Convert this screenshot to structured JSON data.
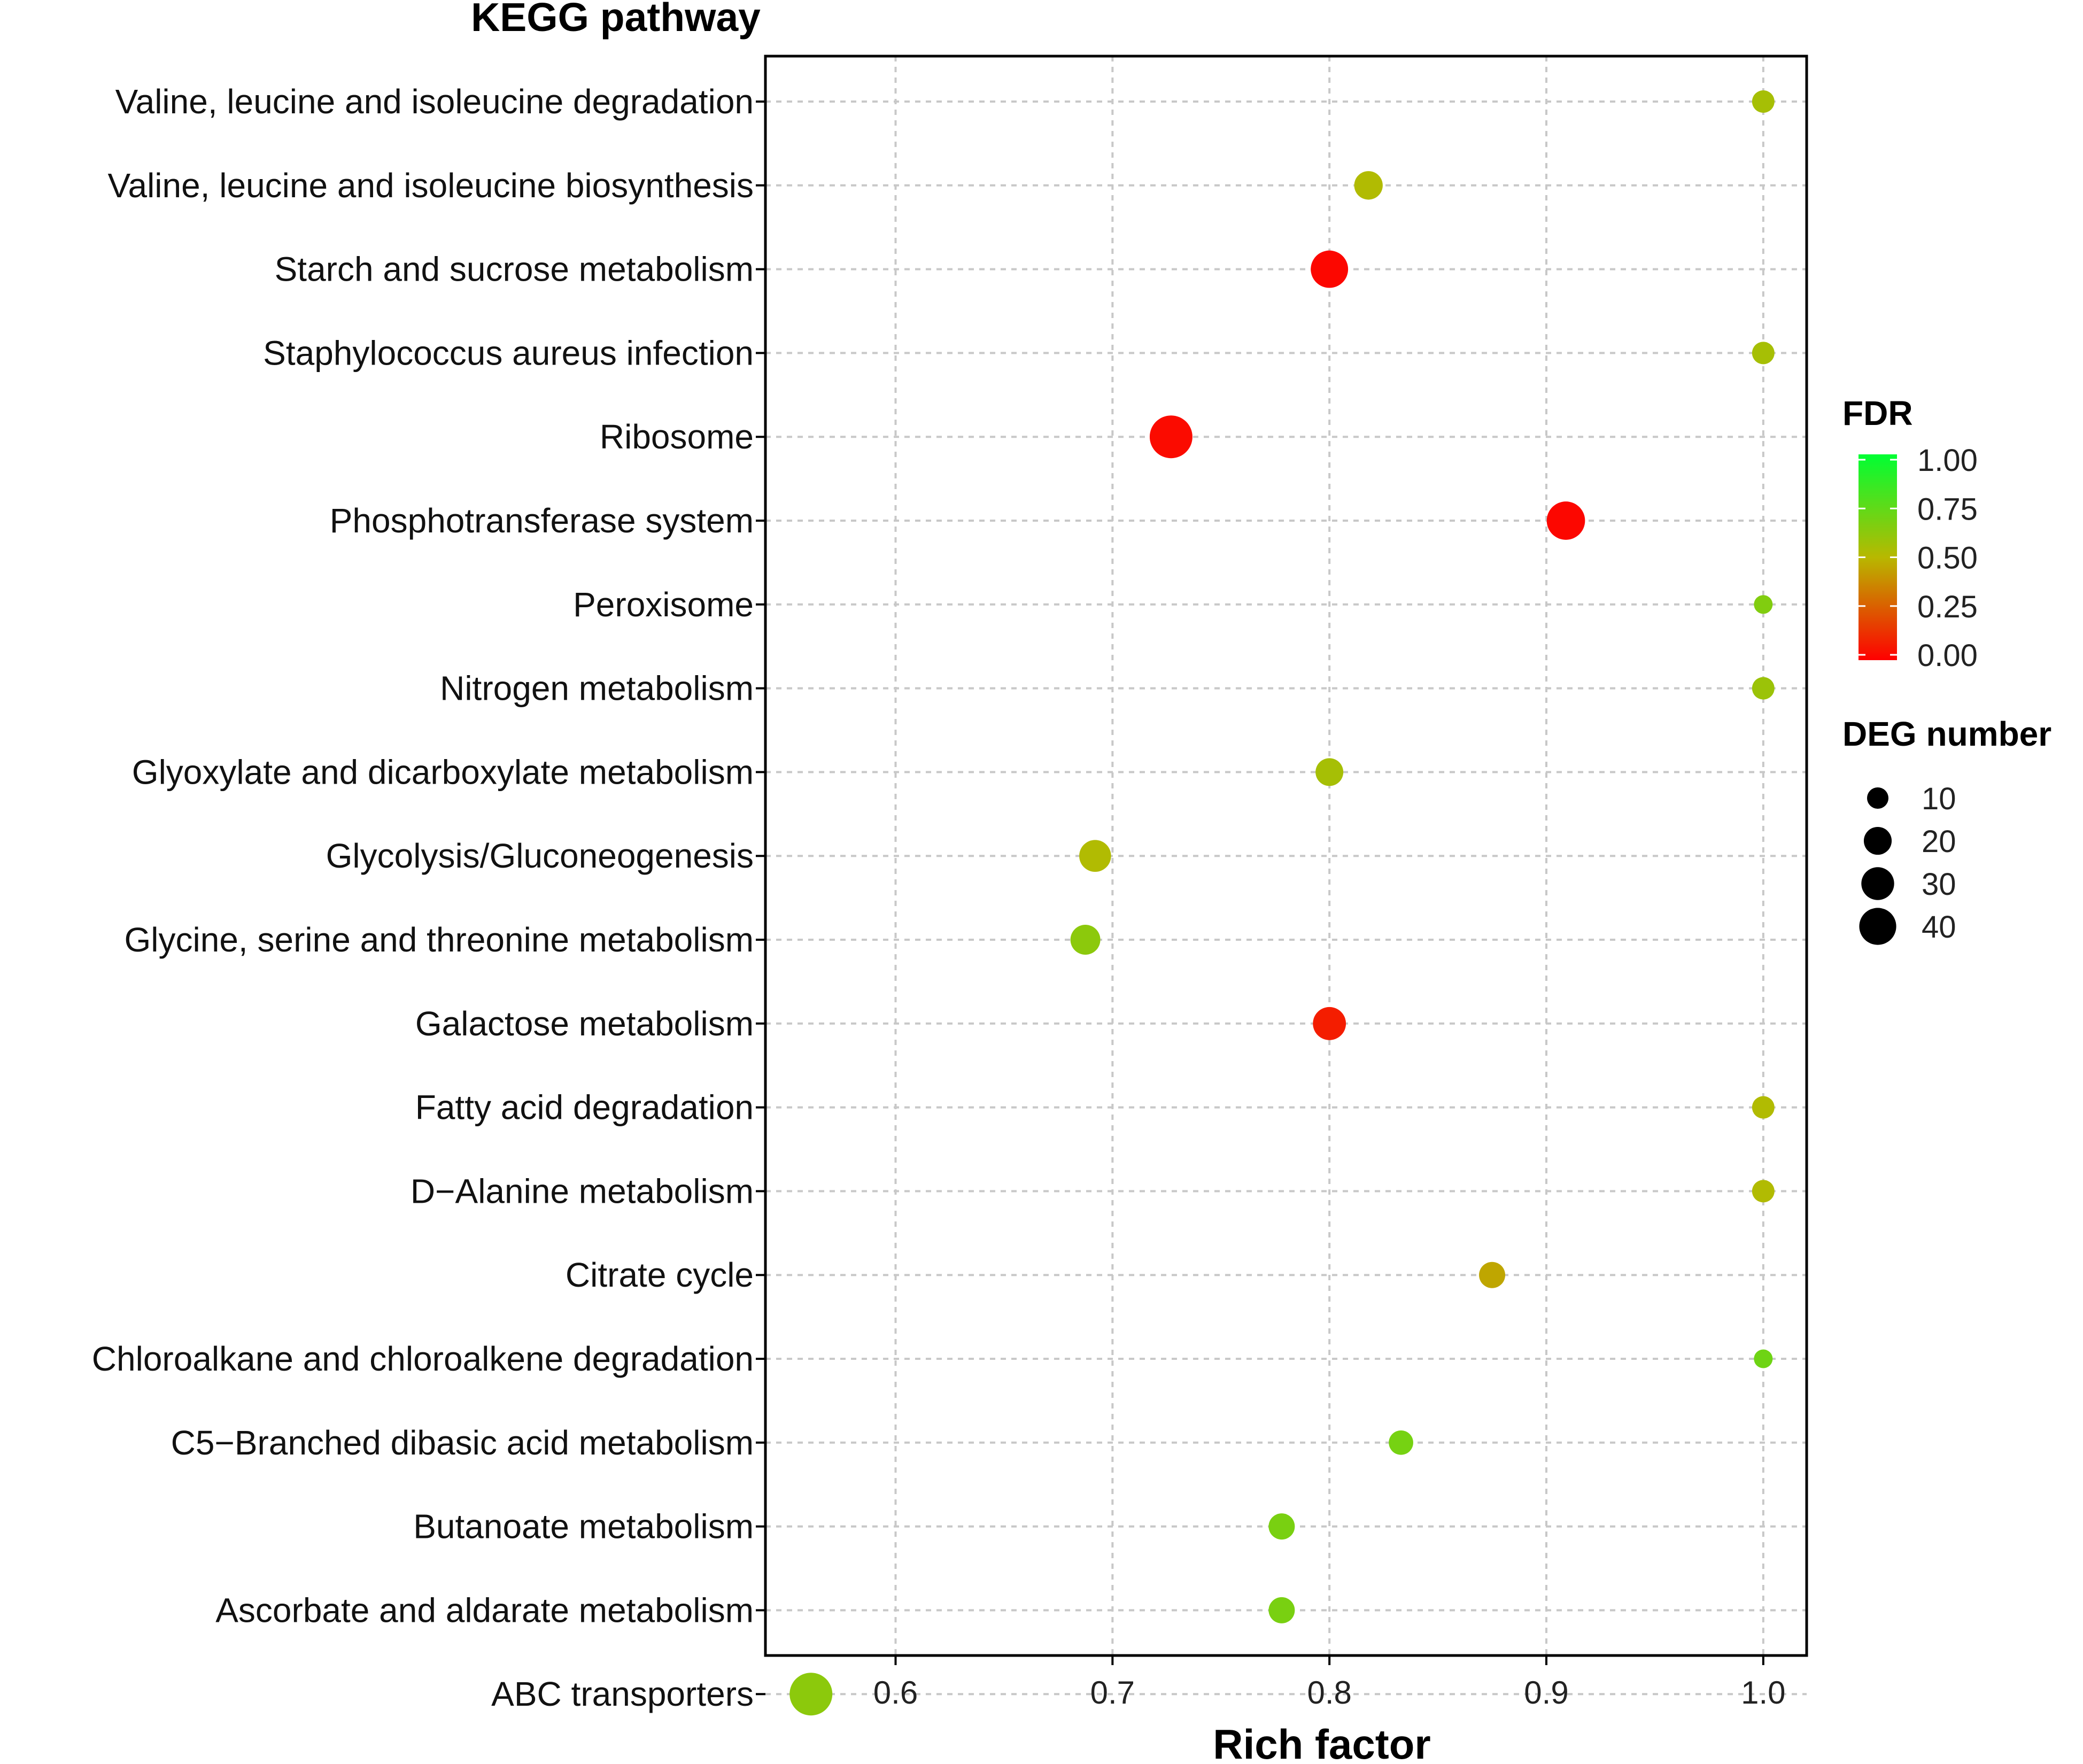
{
  "chart_data": {
    "type": "scatter",
    "title": "KEGG pathway",
    "xlabel": "Rich factor",
    "ylabel": "",
    "xlim": [
      0.54,
      1.02
    ],
    "xticks": [
      0.6,
      0.7,
      0.8,
      0.9,
      1.0
    ],
    "xtick_labels": [
      "0.6",
      "0.7",
      "0.8",
      "0.9",
      "1.0"
    ],
    "grid": true,
    "points": [
      {
        "pathway": "Valine, leucine and isoleucine degradation",
        "rich_factor": 1.0,
        "fdr": 0.55,
        "deg_number": 6
      },
      {
        "pathway": "Valine, leucine and isoleucine biosynthesis",
        "rich_factor": 0.818,
        "fdr": 0.52,
        "deg_number": 13
      },
      {
        "pathway": "Starch and sucrose metabolism",
        "rich_factor": 0.8,
        "fdr": 0.02,
        "deg_number": 28
      },
      {
        "pathway": "Staphylococcus aureus infection",
        "rich_factor": 1.0,
        "fdr": 0.55,
        "deg_number": 6
      },
      {
        "pathway": "Ribosome",
        "rich_factor": 0.727,
        "fdr": 0.03,
        "deg_number": 40
      },
      {
        "pathway": "Phosphotransferase system",
        "rich_factor": 0.909,
        "fdr": 0.02,
        "deg_number": 30
      },
      {
        "pathway": "Peroxisome",
        "rich_factor": 1.0,
        "fdr": 0.65,
        "deg_number": 3
      },
      {
        "pathway": "Nitrogen metabolism",
        "rich_factor": 1.0,
        "fdr": 0.58,
        "deg_number": 6
      },
      {
        "pathway": "Glyoxylate and dicarboxylate metabolism",
        "rich_factor": 0.8,
        "fdr": 0.55,
        "deg_number": 12
      },
      {
        "pathway": "Glycolysis/Gluconeogenesis",
        "rich_factor": 0.692,
        "fdr": 0.52,
        "deg_number": 18
      },
      {
        "pathway": "Glycine, serine and threonine metabolism",
        "rich_factor": 0.6875,
        "fdr": 0.62,
        "deg_number": 15
      },
      {
        "pathway": "Galactose metabolism",
        "rich_factor": 0.8,
        "fdr": 0.08,
        "deg_number": 20
      },
      {
        "pathway": "Fatty acid degradation",
        "rich_factor": 1.0,
        "fdr": 0.52,
        "deg_number": 6
      },
      {
        "pathway": "D−Alanine metabolism",
        "rich_factor": 1.0,
        "fdr": 0.52,
        "deg_number": 6
      },
      {
        "pathway": "Citrate cycle",
        "rich_factor": 0.875,
        "fdr": 0.45,
        "deg_number": 10
      },
      {
        "pathway": "Chloroalkane and chloroalkene degradation",
        "rich_factor": 1.0,
        "fdr": 0.7,
        "deg_number": 3
      },
      {
        "pathway": "C5−Branched dibasic acid metabolism",
        "rich_factor": 0.833,
        "fdr": 0.68,
        "deg_number": 8
      },
      {
        "pathway": "Butanoate metabolism",
        "rich_factor": 0.778,
        "fdr": 0.67,
        "deg_number": 10
      },
      {
        "pathway": "Ascorbate and aldarate metabolism",
        "rich_factor": 0.778,
        "fdr": 0.67,
        "deg_number": 10
      },
      {
        "pathway": "ABC transporters",
        "rich_factor": 0.561,
        "fdr": 0.62,
        "deg_number": 40
      }
    ],
    "legend_color": {
      "title": "FDR",
      "ticks": [
        "1.00",
        "0.75",
        "0.50",
        "0.25",
        "0.00"
      ],
      "tick_values": [
        1.0,
        0.75,
        0.5,
        0.25,
        0.0
      ],
      "colors": {
        "low": "#ff0000",
        "mid": "#b8b800",
        "high": "#00ff33"
      }
    },
    "legend_size": {
      "title": "DEG number",
      "entries": [
        {
          "label": "10",
          "value": 10
        },
        {
          "label": "20",
          "value": 20
        },
        {
          "label": "30",
          "value": 30
        },
        {
          "label": "40",
          "value": 40
        }
      ]
    },
    "legend_placement": "right"
  }
}
